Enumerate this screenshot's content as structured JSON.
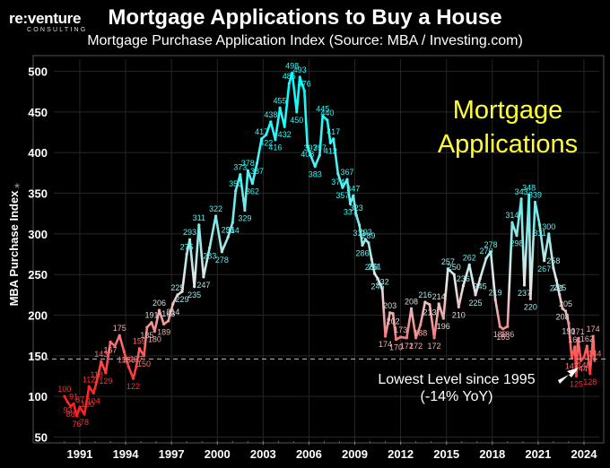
{
  "header": {
    "logo_text": "re:venture",
    "logo_sub": "CONSULTING",
    "title": "Mortgage Applications to Buy a House",
    "subtitle": "Mortgage Purchase Application Index (Source: MBA / Investing.com)"
  },
  "colors": {
    "background": "#000000",
    "low": "#ff2020",
    "high": "#00ffff",
    "overlay_text": "#ffff33",
    "threshold_line": "#aaaaaa"
  },
  "chart_data": {
    "type": "line",
    "title": "Mortgage Applications to Buy a House",
    "ylabel": "MBA Purchase Index",
    "xlabel": "",
    "ylim": [
      45,
      515
    ],
    "xlim": [
      1989.3,
      2025.0
    ],
    "yticks": [
      50,
      100,
      150,
      200,
      250,
      300,
      350,
      400,
      450,
      500
    ],
    "xticks": [
      "1991",
      "1994",
      "1997",
      "2000",
      "2003",
      "2006",
      "2009",
      "2012",
      "2015",
      "2018",
      "2021",
      "2024"
    ],
    "grid": true,
    "overlay_text_lines": [
      "Mortgage",
      "Applications"
    ],
    "threshold": {
      "value": 146,
      "label_lines": [
        "Lowest Level since 1995",
        "(-14% YoY)"
      ]
    },
    "series": [
      {
        "points": [
          [
            1990.0,
            100
          ],
          [
            1990.2,
            93
          ],
          [
            1990.4,
            88
          ],
          [
            1990.6,
            91
          ],
          [
            1990.8,
            76
          ],
          [
            1991.0,
            87
          ],
          [
            1991.3,
            78
          ],
          [
            1991.5,
            100
          ],
          [
            1991.6,
            112
          ],
          [
            1991.9,
            104
          ],
          [
            1992.1,
            118
          ],
          [
            1992.4,
            143
          ],
          [
            1992.7,
            129
          ],
          [
            1993.0,
            167
          ],
          [
            1993.3,
            162
          ],
          [
            1993.6,
            175
          ],
          [
            1993.9,
            155
          ],
          [
            1994.2,
            136
          ],
          [
            1994.5,
            122
          ],
          [
            1994.7,
            137
          ],
          [
            1994.9,
            159
          ],
          [
            1995.2,
            150
          ],
          [
            1995.4,
            185
          ],
          [
            1995.7,
            191
          ],
          [
            1995.9,
            180
          ],
          [
            1996.2,
            206
          ],
          [
            1996.5,
            189
          ],
          [
            1996.8,
            193
          ],
          [
            1997.1,
            214
          ],
          [
            1997.4,
            225
          ],
          [
            1997.7,
            229
          ],
          [
            1998.0,
            275
          ],
          [
            1998.2,
            293
          ],
          [
            1998.5,
            235
          ],
          [
            1998.8,
            311
          ],
          [
            1999.1,
            247
          ],
          [
            1999.5,
            283
          ],
          [
            1999.9,
            322
          ],
          [
            2000.3,
            278
          ],
          [
            2000.7,
            296
          ],
          [
            2001.0,
            314
          ],
          [
            2001.2,
            353
          ],
          [
            2001.5,
            373
          ],
          [
            2001.8,
            329
          ],
          [
            2002.0,
            378
          ],
          [
            2002.3,
            362
          ],
          [
            2002.6,
            387
          ],
          [
            2002.9,
            417
          ],
          [
            2003.2,
            422
          ],
          [
            2003.5,
            438
          ],
          [
            2003.8,
            416
          ],
          [
            2004.1,
            455
          ],
          [
            2004.4,
            432
          ],
          [
            2004.7,
            485
          ],
          [
            2004.9,
            498
          ],
          [
            2005.2,
            450
          ],
          [
            2005.4,
            493
          ],
          [
            2005.7,
            476
          ],
          [
            2005.9,
            408
          ],
          [
            2006.1,
            397
          ],
          [
            2006.4,
            383
          ],
          [
            2006.7,
            397
          ],
          [
            2006.9,
            445
          ],
          [
            2007.2,
            440
          ],
          [
            2007.4,
            412
          ],
          [
            2007.6,
            417
          ],
          [
            2007.9,
            374
          ],
          [
            2008.2,
            357
          ],
          [
            2008.5,
            367
          ],
          [
            2008.7,
            337
          ],
          [
            2008.9,
            347
          ],
          [
            2009.1,
            323
          ],
          [
            2009.3,
            311
          ],
          [
            2009.5,
            286
          ],
          [
            2009.7,
            293
          ],
          [
            2009.9,
            289
          ],
          [
            2010.1,
            269
          ],
          [
            2010.3,
            251
          ],
          [
            2010.5,
            245
          ],
          [
            2010.8,
            232
          ],
          [
            2011.0,
            174
          ],
          [
            2011.3,
            203
          ],
          [
            2011.5,
            202
          ],
          [
            2011.7,
            170
          ],
          [
            2012.0,
            173
          ],
          [
            2012.4,
            172
          ],
          [
            2012.7,
            208
          ],
          [
            2013.0,
            172
          ],
          [
            2013.3,
            188
          ],
          [
            2013.6,
            216
          ],
          [
            2013.9,
            213
          ],
          [
            2014.2,
            172
          ],
          [
            2014.5,
            214
          ],
          [
            2014.8,
            196
          ],
          [
            2015.1,
            257
          ],
          [
            2015.5,
            250
          ],
          [
            2015.8,
            210
          ],
          [
            2016.1,
            236
          ],
          [
            2016.5,
            262
          ],
          [
            2016.9,
            225
          ],
          [
            2017.2,
            245
          ],
          [
            2017.6,
            270
          ],
          [
            2017.9,
            278
          ],
          [
            2018.2,
            219
          ],
          [
            2018.5,
            186
          ],
          [
            2018.7,
            183
          ],
          [
            2019.0,
            186
          ],
          [
            2019.3,
            314
          ],
          [
            2019.6,
            298
          ],
          [
            2019.9,
            343
          ],
          [
            2020.1,
            237
          ],
          [
            2020.4,
            348
          ],
          [
            2020.5,
            220
          ],
          [
            2020.8,
            339
          ],
          [
            2021.1,
            311
          ],
          [
            2021.4,
            267
          ],
          [
            2021.7,
            300
          ],
          [
            2022.0,
            258
          ],
          [
            2022.2,
            243
          ],
          [
            2022.4,
            225
          ],
          [
            2022.6,
            208
          ],
          [
            2022.8,
            205
          ],
          [
            2023.0,
            190
          ],
          [
            2023.2,
            147
          ],
          [
            2023.4,
            161
          ],
          [
            2023.5,
            125
          ],
          [
            2023.6,
            171
          ],
          [
            2023.8,
            144
          ],
          [
            2024.0,
            148
          ],
          [
            2024.2,
            162
          ],
          [
            2024.4,
            128
          ],
          [
            2024.6,
            174
          ],
          [
            2024.7,
            144
          ]
        ]
      }
    ],
    "data_labels": [
      {
        "x": 1990.0,
        "y": 100,
        "text": "100"
      },
      {
        "x": 1990.2,
        "y": 93,
        "text": "93"
      },
      {
        "x": 1990.4,
        "y": 88,
        "text": "88"
      },
      {
        "x": 1990.6,
        "y": 91,
        "text": "91"
      },
      {
        "x": 1990.8,
        "y": 76,
        "text": "76"
      },
      {
        "x": 1991.0,
        "y": 87,
        "text": "87"
      },
      {
        "x": 1991.3,
        "y": 78,
        "text": "78"
      },
      {
        "x": 1991.5,
        "y": 100,
        "text": "100"
      },
      {
        "x": 1991.6,
        "y": 112,
        "text": "112"
      },
      {
        "x": 1991.9,
        "y": 104,
        "text": "104"
      },
      {
        "x": 1992.1,
        "y": 118,
        "text": "118"
      },
      {
        "x": 1992.4,
        "y": 143,
        "text": "143"
      },
      {
        "x": 1992.7,
        "y": 129,
        "text": "129"
      },
      {
        "x": 1993.0,
        "y": 167,
        "text": "167"
      },
      {
        "x": 1993.6,
        "y": 175,
        "text": "175"
      },
      {
        "x": 1993.9,
        "y": 155,
        "text": "155"
      },
      {
        "x": 1994.2,
        "y": 136,
        "text": "136"
      },
      {
        "x": 1994.5,
        "y": 122,
        "text": "122"
      },
      {
        "x": 1994.7,
        "y": 137,
        "text": "137"
      },
      {
        "x": 1994.9,
        "y": 159,
        "text": "159"
      },
      {
        "x": 1995.2,
        "y": 150,
        "text": "150"
      },
      {
        "x": 1995.4,
        "y": 185,
        "text": "185"
      },
      {
        "x": 1995.7,
        "y": 191,
        "text": "191"
      },
      {
        "x": 1995.9,
        "y": 180,
        "text": "180"
      },
      {
        "x": 1996.2,
        "y": 206,
        "text": "206"
      },
      {
        "x": 1996.5,
        "y": 189,
        "text": "189"
      },
      {
        "x": 1996.8,
        "y": 193,
        "text": "193"
      },
      {
        "x": 1997.1,
        "y": 214,
        "text": "214"
      },
      {
        "x": 1997.4,
        "y": 225,
        "text": "225"
      },
      {
        "x": 1997.7,
        "y": 229,
        "text": "229"
      },
      {
        "x": 1998.0,
        "y": 275,
        "text": "275"
      },
      {
        "x": 1998.2,
        "y": 293,
        "text": "293"
      },
      {
        "x": 1998.5,
        "y": 235,
        "text": "235"
      },
      {
        "x": 1998.8,
        "y": 311,
        "text": "311"
      },
      {
        "x": 1999.1,
        "y": 247,
        "text": "247"
      },
      {
        "x": 1999.5,
        "y": 283,
        "text": "283"
      },
      {
        "x": 1999.9,
        "y": 322,
        "text": "322"
      },
      {
        "x": 2000.3,
        "y": 278,
        "text": "278"
      },
      {
        "x": 2000.7,
        "y": 296,
        "text": "296"
      },
      {
        "x": 2001.0,
        "y": 314,
        "text": "314"
      },
      {
        "x": 2001.2,
        "y": 353,
        "text": "353"
      },
      {
        "x": 2001.5,
        "y": 373,
        "text": "373"
      },
      {
        "x": 2001.8,
        "y": 329,
        "text": "329"
      },
      {
        "x": 2002.0,
        "y": 378,
        "text": "378"
      },
      {
        "x": 2002.3,
        "y": 362,
        "text": "362"
      },
      {
        "x": 2002.6,
        "y": 387,
        "text": "387"
      },
      {
        "x": 2002.9,
        "y": 417,
        "text": "417"
      },
      {
        "x": 2003.2,
        "y": 422,
        "text": "422"
      },
      {
        "x": 2003.5,
        "y": 438,
        "text": "438"
      },
      {
        "x": 2003.8,
        "y": 416,
        "text": "416"
      },
      {
        "x": 2004.1,
        "y": 455,
        "text": "455"
      },
      {
        "x": 2004.4,
        "y": 432,
        "text": "432"
      },
      {
        "x": 2004.7,
        "y": 485,
        "text": "485"
      },
      {
        "x": 2004.9,
        "y": 498,
        "text": "498"
      },
      {
        "x": 2005.2,
        "y": 450,
        "text": "450"
      },
      {
        "x": 2005.4,
        "y": 493,
        "text": "493"
      },
      {
        "x": 2005.7,
        "y": 476,
        "text": "476"
      },
      {
        "x": 2005.9,
        "y": 408,
        "text": "408"
      },
      {
        "x": 2006.1,
        "y": 397,
        "text": "397"
      },
      {
        "x": 2006.4,
        "y": 383,
        "text": "383"
      },
      {
        "x": 2006.7,
        "y": 397,
        "text": "397"
      },
      {
        "x": 2006.9,
        "y": 445,
        "text": "445"
      },
      {
        "x": 2007.2,
        "y": 440,
        "text": "440"
      },
      {
        "x": 2007.4,
        "y": 412,
        "text": "412"
      },
      {
        "x": 2007.6,
        "y": 417,
        "text": "417"
      },
      {
        "x": 2007.9,
        "y": 374,
        "text": "374"
      },
      {
        "x": 2008.2,
        "y": 357,
        "text": "357"
      },
      {
        "x": 2008.5,
        "y": 367,
        "text": "367"
      },
      {
        "x": 2008.7,
        "y": 337,
        "text": "337"
      },
      {
        "x": 2008.9,
        "y": 347,
        "text": "347"
      },
      {
        "x": 2009.1,
        "y": 323,
        "text": "323"
      },
      {
        "x": 2009.3,
        "y": 311,
        "text": "311"
      },
      {
        "x": 2009.5,
        "y": 286,
        "text": "286"
      },
      {
        "x": 2009.7,
        "y": 293,
        "text": "293"
      },
      {
        "x": 2009.9,
        "y": 289,
        "text": "289"
      },
      {
        "x": 2010.1,
        "y": 269,
        "text": "269"
      },
      {
        "x": 2010.3,
        "y": 251,
        "text": "251"
      },
      {
        "x": 2010.5,
        "y": 245,
        "text": "245"
      },
      {
        "x": 2010.8,
        "y": 232,
        "text": "232"
      },
      {
        "x": 2011.0,
        "y": 174,
        "text": "174"
      },
      {
        "x": 2011.3,
        "y": 203,
        "text": "203"
      },
      {
        "x": 2011.5,
        "y": 202,
        "text": "202"
      },
      {
        "x": 2011.7,
        "y": 170,
        "text": "170"
      },
      {
        "x": 2012.0,
        "y": 173,
        "text": "173"
      },
      {
        "x": 2012.4,
        "y": 172,
        "text": "172"
      },
      {
        "x": 2012.7,
        "y": 208,
        "text": "208"
      },
      {
        "x": 2013.0,
        "y": 172,
        "text": "172"
      },
      {
        "x": 2013.3,
        "y": 188,
        "text": "188"
      },
      {
        "x": 2013.6,
        "y": 216,
        "text": "216"
      },
      {
        "x": 2013.9,
        "y": 213,
        "text": "213"
      },
      {
        "x": 2014.2,
        "y": 172,
        "text": "172"
      },
      {
        "x": 2014.5,
        "y": 214,
        "text": "214"
      },
      {
        "x": 2014.8,
        "y": 196,
        "text": "196"
      },
      {
        "x": 2015.1,
        "y": 257,
        "text": "257"
      },
      {
        "x": 2015.5,
        "y": 250,
        "text": "250"
      },
      {
        "x": 2015.8,
        "y": 210,
        "text": "210"
      },
      {
        "x": 2016.1,
        "y": 236,
        "text": "236"
      },
      {
        "x": 2016.5,
        "y": 262,
        "text": "262"
      },
      {
        "x": 2016.9,
        "y": 225,
        "text": "225"
      },
      {
        "x": 2017.2,
        "y": 245,
        "text": "245"
      },
      {
        "x": 2017.6,
        "y": 270,
        "text": "270"
      },
      {
        "x": 2017.9,
        "y": 278,
        "text": "278"
      },
      {
        "x": 2018.2,
        "y": 219,
        "text": "219"
      },
      {
        "x": 2018.5,
        "y": 186,
        "text": "186"
      },
      {
        "x": 2018.7,
        "y": 183,
        "text": "183"
      },
      {
        "x": 2019.0,
        "y": 186,
        "text": "186"
      },
      {
        "x": 2019.3,
        "y": 314,
        "text": "314"
      },
      {
        "x": 2019.6,
        "y": 298,
        "text": "298"
      },
      {
        "x": 2019.9,
        "y": 343,
        "text": "343"
      },
      {
        "x": 2020.1,
        "y": 237,
        "text": "237"
      },
      {
        "x": 2020.4,
        "y": 348,
        "text": "348"
      },
      {
        "x": 2020.5,
        "y": 220,
        "text": "220"
      },
      {
        "x": 2020.8,
        "y": 339,
        "text": "339"
      },
      {
        "x": 2021.1,
        "y": 311,
        "text": "311"
      },
      {
        "x": 2021.4,
        "y": 267,
        "text": "267"
      },
      {
        "x": 2021.7,
        "y": 300,
        "text": "300"
      },
      {
        "x": 2022.0,
        "y": 258,
        "text": "258"
      },
      {
        "x": 2022.2,
        "y": 243,
        "text": "243"
      },
      {
        "x": 2022.4,
        "y": 225,
        "text": "225"
      },
      {
        "x": 2022.6,
        "y": 208,
        "text": "208"
      },
      {
        "x": 2022.8,
        "y": 205,
        "text": "205"
      },
      {
        "x": 2023.0,
        "y": 190,
        "text": "190"
      },
      {
        "x": 2023.2,
        "y": 147,
        "text": "147"
      },
      {
        "x": 2023.4,
        "y": 161,
        "text": "161"
      },
      {
        "x": 2023.5,
        "y": 125,
        "text": "125"
      },
      {
        "x": 2023.6,
        "y": 171,
        "text": "171"
      },
      {
        "x": 2023.8,
        "y": 144,
        "text": "144"
      },
      {
        "x": 2024.0,
        "y": 148,
        "text": "148"
      },
      {
        "x": 2024.2,
        "y": 162,
        "text": "162"
      },
      {
        "x": 2024.4,
        "y": 128,
        "text": "128"
      },
      {
        "x": 2024.6,
        "y": 174,
        "text": "174"
      },
      {
        "x": 2024.7,
        "y": 144,
        "text": "144"
      }
    ]
  }
}
